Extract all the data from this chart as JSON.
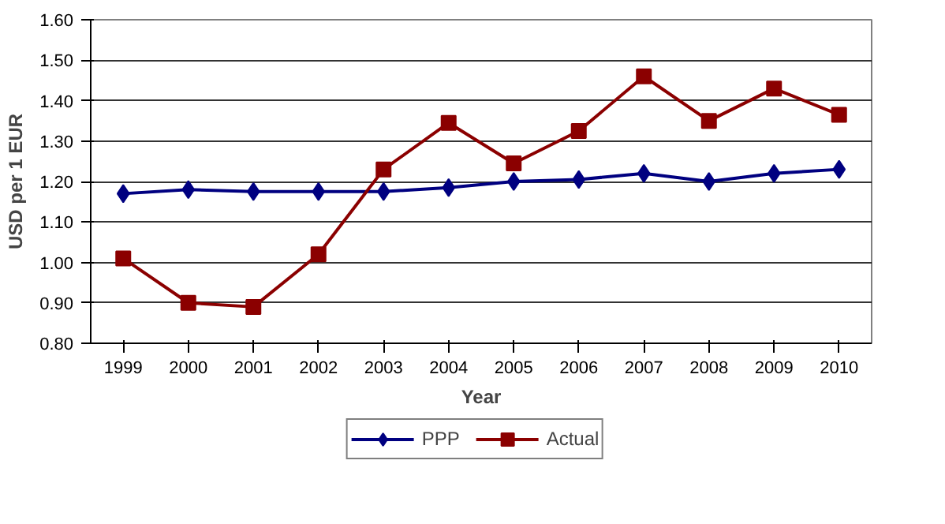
{
  "chart_data": {
    "type": "line",
    "xlabel": "Year",
    "ylabel": "USD per 1 EUR",
    "categories": [
      "1999",
      "2000",
      "2001",
      "2002",
      "2003",
      "2004",
      "2005",
      "2006",
      "2007",
      "2008",
      "2009",
      "2010"
    ],
    "series": [
      {
        "name": "PPP",
        "color": "#000080",
        "marker": "diamond",
        "values": [
          1.17,
          1.18,
          1.175,
          1.175,
          1.175,
          1.185,
          1.2,
          1.205,
          1.22,
          1.2,
          1.22,
          1.23
        ]
      },
      {
        "name": "Actual",
        "color": "#8b0000",
        "marker": "square",
        "values": [
          1.01,
          0.9,
          0.89,
          1.02,
          1.23,
          1.345,
          1.245,
          1.325,
          1.46,
          1.35,
          1.43,
          1.365
        ]
      }
    ],
    "ylim": [
      0.8,
      1.6
    ],
    "yticks": [
      {
        "value": 0.8,
        "label": "0.80"
      },
      {
        "value": 0.9,
        "label": "0.90"
      },
      {
        "value": 1,
        "label": "1.00"
      },
      {
        "value": 1.1,
        "label": "1.10"
      },
      {
        "value": 1.2,
        "label": "1.20"
      },
      {
        "value": 1.3,
        "label": "1.30"
      },
      {
        "value": 1.4,
        "label": "1.40"
      },
      {
        "value": 1.5,
        "label": "1.50"
      },
      {
        "value": 1.6,
        "label": "1.60"
      }
    ],
    "grid": "y",
    "legend": "bottom"
  }
}
